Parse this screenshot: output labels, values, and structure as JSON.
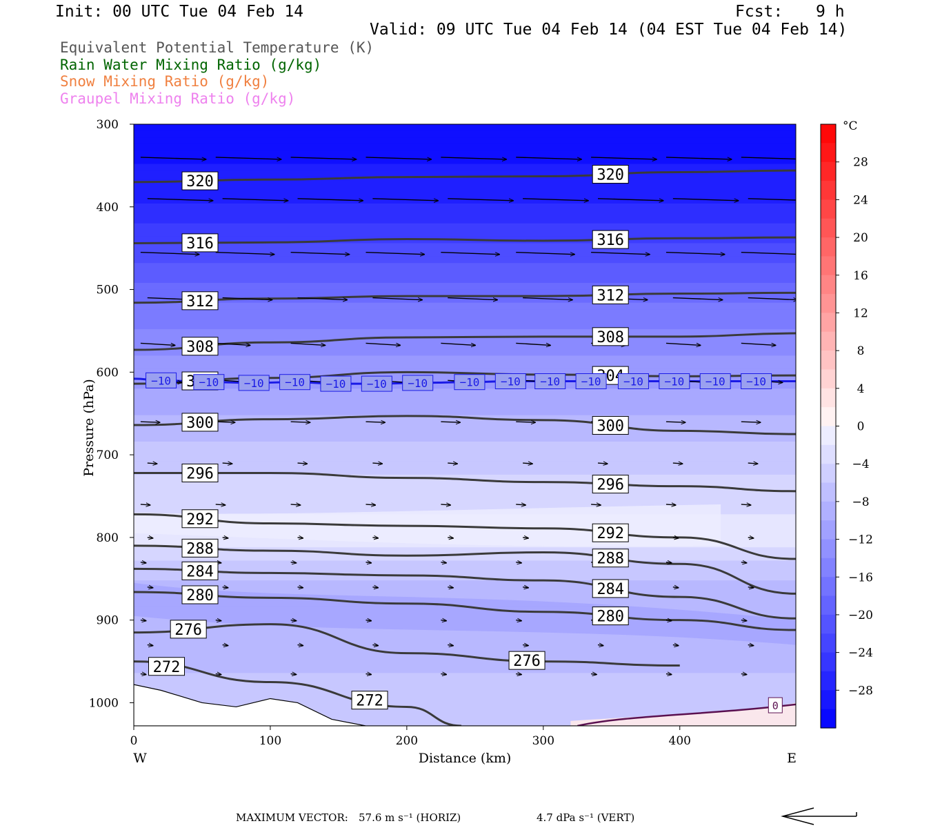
{
  "header": {
    "init": "Init: 00 UTC Tue 04 Feb 14",
    "fcst_label": "Fcst:",
    "fcst_value": "9 h",
    "valid": "Valid: 09 UTC Tue 04 Feb 14 (04 EST Tue 04 Feb 14)"
  },
  "legend": [
    {
      "label": "Equivalent Potential Temperature (K)",
      "color": "#555555"
    },
    {
      "label": "Rain Water Mixing Ratio (g/kg)",
      "color": "#006400"
    },
    {
      "label": "Snow Mixing Ratio (g/kg)",
      "color": "#f08040"
    },
    {
      "label": "Graupel Mixing Ratio (g/kg)",
      "color": "#ee82ee"
    }
  ],
  "footer": {
    "max_vector_label": "MAXIMUM VECTOR:",
    "horiz": "57.6 m s⁻¹ (HORIZ)",
    "vert": "4.7 dPa s⁻¹ (VERT)"
  },
  "chart_data": {
    "type": "heatmap",
    "xlabel": "Distance (km)",
    "ylabel": "Pressure (hPa)",
    "xlim": [
      0,
      485
    ],
    "ylim": [
      1028,
      300
    ],
    "y_scale": "linear",
    "x_ticks": [
      0,
      100,
      200,
      300,
      400
    ],
    "y_ticks": [
      300,
      400,
      500,
      600,
      700,
      800,
      900,
      1000
    ],
    "x_end_labels": {
      "left": "W",
      "right": "E"
    },
    "colorbar": {
      "unit": "°C",
      "ticks": [
        "28",
        "24",
        "20",
        "16",
        "12",
        "8",
        "4",
        "0",
        "−4",
        "−8",
        "−12",
        "−16",
        "−20",
        "−24",
        "−28"
      ],
      "tick_values": [
        28,
        24,
        20,
        16,
        12,
        8,
        4,
        0,
        -4,
        -8,
        -12,
        -16,
        -20,
        -24,
        -28
      ],
      "range": [
        -32,
        32
      ]
    },
    "temperature_field_c_by_pressure": [
      {
        "p": 300,
        "t": -31
      },
      {
        "p": 400,
        "t": -27
      },
      {
        "p": 500,
        "t": -18
      },
      {
        "p": 600,
        "t": -12
      },
      {
        "p": 700,
        "t": -6
      },
      {
        "p": 800,
        "t": -2
      },
      {
        "p": 850,
        "t": -7
      },
      {
        "p": 900,
        "t": -9
      },
      {
        "p": 1000,
        "t": -6
      }
    ],
    "theta_e_contours": [
      {
        "label": "320",
        "x": [
          0,
          100,
          200,
          300,
          400,
          485
        ],
        "p": [
          370,
          367,
          364,
          363,
          358,
          356
        ]
      },
      {
        "label": "316",
        "x": [
          0,
          100,
          200,
          300,
          400,
          485
        ],
        "p": [
          444,
          443,
          439,
          441,
          438,
          437
        ]
      },
      {
        "label": "312",
        "x": [
          0,
          100,
          200,
          300,
          400,
          485
        ],
        "p": [
          516,
          511,
          508,
          508,
          505,
          504
        ]
      },
      {
        "label": "308",
        "x": [
          0,
          100,
          200,
          300,
          400,
          485
        ],
        "p": [
          573,
          564,
          558,
          557,
          557,
          553
        ]
      },
      {
        "label": "304",
        "x": [
          0,
          100,
          200,
          300,
          400,
          485
        ],
        "p": [
          614,
          607,
          600,
          603,
          605,
          604
        ]
      },
      {
        "label": "300",
        "x": [
          0,
          100,
          200,
          300,
          400,
          485
        ],
        "p": [
          664,
          657,
          653,
          658,
          671,
          675
        ]
      },
      {
        "label": "296",
        "x": [
          0,
          100,
          200,
          300,
          400,
          485
        ],
        "p": [
          722,
          722,
          728,
          733,
          738,
          744
        ]
      },
      {
        "label": "292",
        "x": [
          0,
          100,
          200,
          300,
          400,
          485
        ],
        "p": [
          772,
          783,
          786,
          789,
          800,
          826
        ]
      },
      {
        "label": "288",
        "x": [
          0,
          100,
          200,
          300,
          400,
          485
        ],
        "p": [
          810,
          816,
          822,
          818,
          832,
          868
        ]
      },
      {
        "label": "284",
        "x": [
          0,
          100,
          200,
          300,
          400,
          485
        ],
        "p": [
          838,
          843,
          846,
          852,
          872,
          898
        ]
      },
      {
        "label": "280",
        "x": [
          0,
          100,
          200,
          300,
          400,
          485
        ],
        "p": [
          866,
          873,
          880,
          890,
          900,
          912
        ]
      },
      {
        "label": "276",
        "x": [
          0,
          100,
          200,
          300,
          400
        ],
        "p": [
          915,
          905,
          940,
          950,
          955
        ]
      },
      {
        "label": "272",
        "x": [
          0,
          100,
          200,
          240
        ],
        "p": [
          950,
          975,
          1005,
          1028
        ]
      }
    ],
    "isotherm_minus10": {
      "label": "−10",
      "label_positions_x": [
        20,
        55,
        88,
        118,
        148,
        178,
        208,
        246,
        276,
        305,
        335,
        366,
        396,
        426,
        456
      ],
      "p": [
        610,
        612,
        613,
        612,
        614,
        614,
        613,
        612,
        611,
        611,
        611,
        611,
        611,
        611,
        611
      ]
    },
    "graupel_contour": {
      "label": "0"
    },
    "wind_vector_rows_hPa": [
      340,
      390,
      455,
      510,
      565,
      610,
      660,
      710,
      760,
      800,
      830,
      860,
      900,
      930,
      965
    ],
    "max_vector_horiz_m_s": 57.6,
    "max_vector_vert_dPa_s": 4.7
  }
}
